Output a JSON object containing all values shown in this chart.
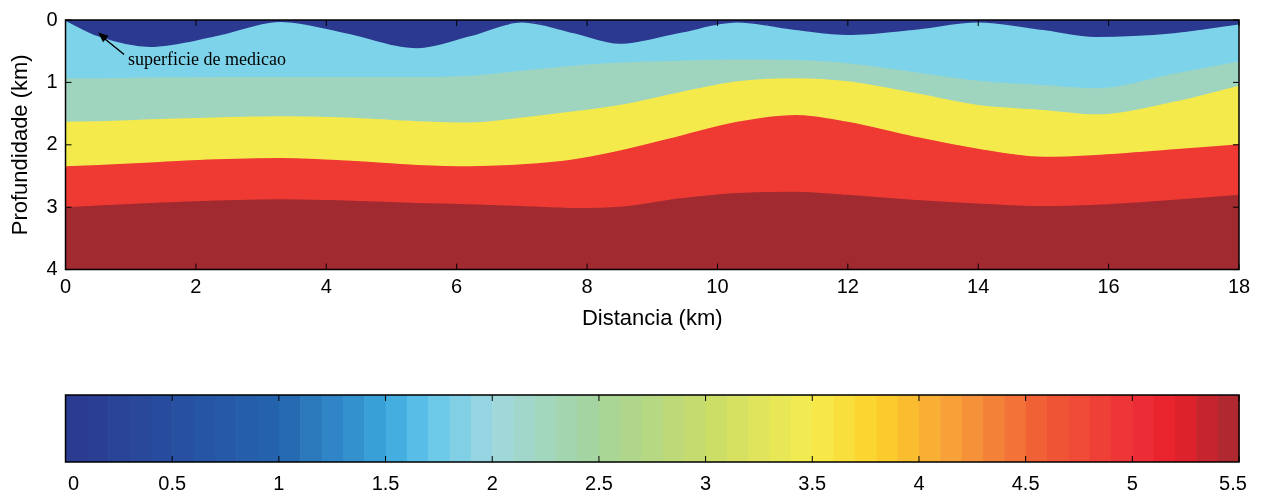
{
  "chart_data": {
    "type": "area",
    "stacked": true,
    "xlabel": "Distancia (km)",
    "ylabel": "Profundidade (km)",
    "x": [
      0,
      0.5,
      1.3,
      2.3,
      3.3,
      4.3,
      5.4,
      6.2,
      7.0,
      7.8,
      8.5,
      9.4,
      10.3,
      11.2,
      12,
      13,
      14,
      15,
      15.8,
      17,
      18
    ],
    "xlim": [
      0,
      18
    ],
    "xticks": [
      0,
      2,
      4,
      6,
      8,
      10,
      12,
      14,
      16,
      18
    ],
    "ylim": [
      4,
      0
    ],
    "yticks": [
      0,
      1,
      2,
      3,
      4
    ],
    "grid": false,
    "legend": false,
    "clim": [
      0,
      5.5
    ],
    "cticks": [
      0,
      0.5,
      1,
      1.5,
      2,
      2.5,
      3,
      3.5,
      4,
      4.5,
      5,
      5.5
    ],
    "annotations": [
      {
        "text": "superficie de medicao",
        "x": 0.5,
        "y": 0.2
      }
    ],
    "series": [
      {
        "color": "#2b3990",
        "values": [
          0,
          0.25,
          0.42,
          0.25,
          0.02,
          0.2,
          0.44,
          0.25,
          0.03,
          0.2,
          0.37,
          0.2,
          0.03,
          0.15,
          0.23,
          0.15,
          0.03,
          0.15,
          0.26,
          0.2,
          0.06
        ]
      },
      {
        "color": "#7dd3ea",
        "values": [
          0.92,
          0.67,
          0.49,
          0.65,
          0.88,
          0.7,
          0.46,
          0.63,
          0.77,
          0.52,
          0.3,
          0.44,
          0.59,
          0.48,
          0.45,
          0.67,
          0.93,
          0.88,
          0.82,
          0.65,
          0.59
        ]
      },
      {
        "color": "#9fd5bf",
        "values": [
          0.7,
          0.69,
          0.67,
          0.65,
          0.63,
          0.65,
          0.71,
          0.75,
          0.75,
          0.73,
          0.68,
          0.51,
          0.35,
          0.29,
          0.29,
          0.33,
          0.39,
          0.4,
          0.42,
          0.45,
          0.39
        ]
      },
      {
        "color": "#f5ea4c",
        "values": [
          0.71,
          0.7,
          0.69,
          0.67,
          0.67,
          0.69,
          0.7,
          0.7,
          0.75,
          0.77,
          0.73,
          0.7,
          0.65,
          0.59,
          0.65,
          0.7,
          0.7,
          0.75,
          0.65,
          0.76,
          0.94
        ]
      },
      {
        "color": "#ee3a33",
        "values": [
          0.66,
          0.65,
          0.65,
          0.66,
          0.66,
          0.64,
          0.61,
          0.61,
          0.67,
          0.78,
          0.9,
          1.0,
          1.14,
          1.23,
          1.17,
          1.02,
          0.88,
          0.79,
          0.8,
          0.81,
          0.81
        ]
      },
      {
        "color": "#a12a31",
        "values": [
          1.01,
          1.04,
          1.08,
          1.12,
          1.14,
          1.12,
          1.08,
          1.06,
          1.03,
          1.0,
          1.02,
          1.15,
          1.24,
          1.26,
          1.21,
          1.13,
          1.07,
          1.03,
          1.05,
          1.13,
          1.21
        ]
      }
    ]
  }
}
